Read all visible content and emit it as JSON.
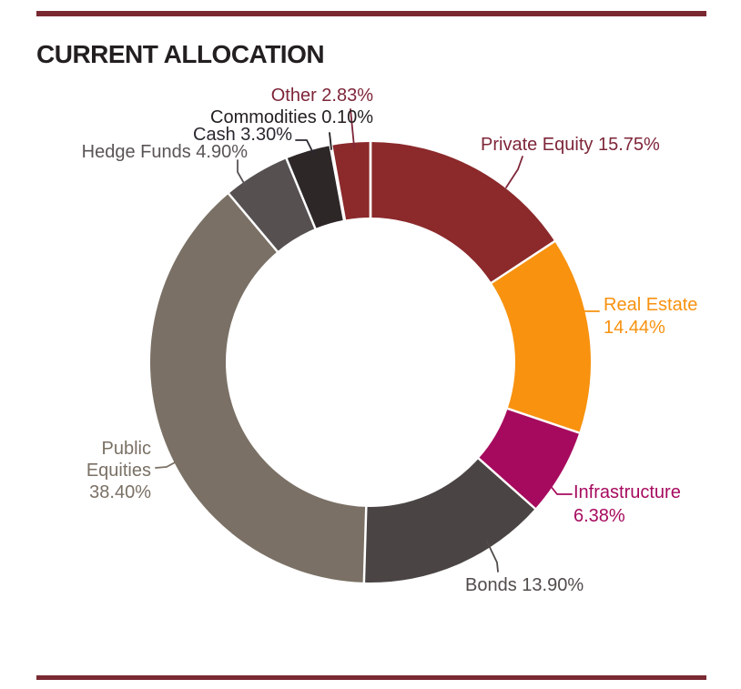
{
  "page": {
    "title": "CURRENT ALLOCATION",
    "accent_color": "#7A2932"
  },
  "chart_data": {
    "type": "pie",
    "variant": "donut",
    "title": "CURRENT ALLOCATION",
    "unit": "percent",
    "total": 100.0,
    "start_angle_deg": 0,
    "direction": "clockwise",
    "legend_position": "callout-labels",
    "divider_color": "#ffffff",
    "slices": [
      {
        "name": "Private Equity",
        "value": 15.75,
        "color": "#8B292B",
        "label_color": "#7E2639",
        "label_lines": [
          "Private Equity 15.75%"
        ]
      },
      {
        "name": "Real Estate",
        "value": 14.44,
        "color": "#F8920F",
        "label_color": "#F8920F",
        "label_lines": [
          "Real Estate",
          "14.44%"
        ]
      },
      {
        "name": "Infrastructure",
        "value": 6.38,
        "color": "#A60A5E",
        "label_color": "#A60A5E",
        "label_lines": [
          "Infrastructure",
          "6.38%"
        ]
      },
      {
        "name": "Bonds",
        "value": 13.9,
        "color": "#4A4544",
        "label_color": "#514B4A",
        "label_lines": [
          "Bonds 13.90%"
        ]
      },
      {
        "name": "Public Equities",
        "value": 38.4,
        "color": "#7A7065",
        "label_color": "#7A7065",
        "label_lines": [
          "Public",
          "Equities",
          "38.40%"
        ]
      },
      {
        "name": "Hedge Funds",
        "value": 4.9,
        "color": "#565051",
        "label_color": "#5A5456",
        "label_lines": [
          "Hedge Funds 4.90%"
        ]
      },
      {
        "name": "Cash",
        "value": 3.3,
        "color": "#2D2728",
        "label_color": "#2B2730",
        "label_lines": [
          "Cash 3.30%"
        ]
      },
      {
        "name": "Commodities",
        "value": 0.1,
        "color": "#1A1A1A",
        "label_color": "#231F20",
        "label_lines": [
          "Commodities 0.10%"
        ]
      },
      {
        "name": "Other",
        "value": 2.83,
        "color": "#8B292B",
        "label_color": "#7E2639",
        "label_lines": [
          "Other 2.83%"
        ]
      }
    ]
  }
}
